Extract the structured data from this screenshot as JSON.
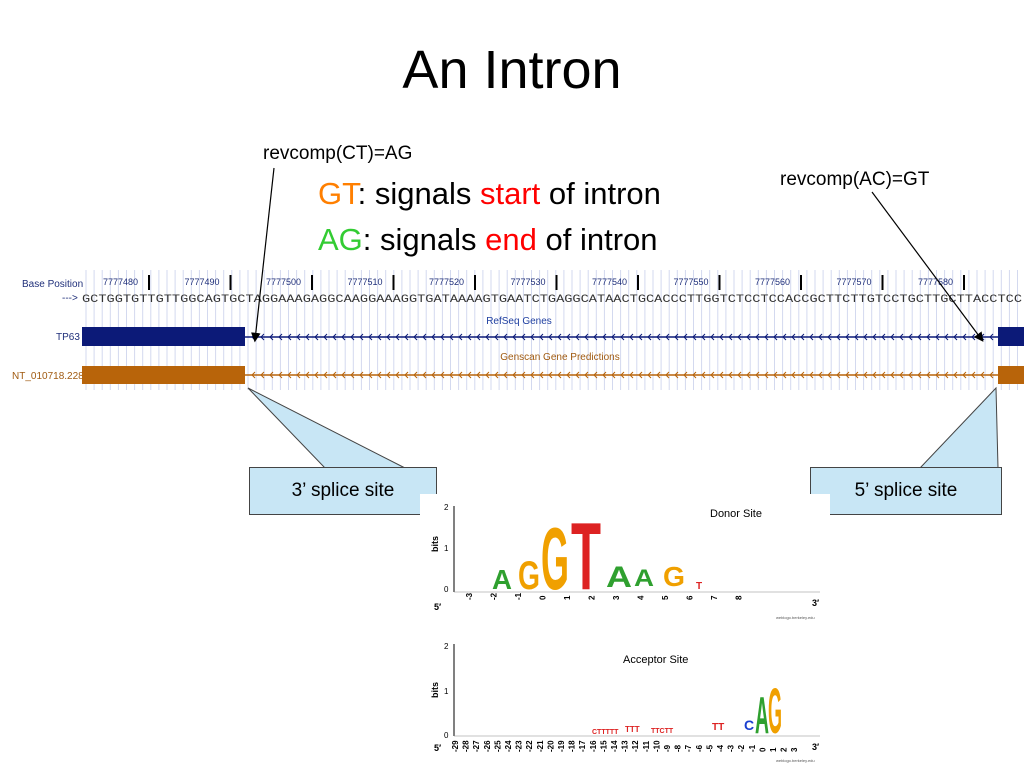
{
  "slide": {
    "title": "An Intron",
    "callout_left": "revcomp(CT)=AG",
    "callout_right": "revcomp(AC)=GT",
    "line1": {
      "part1": "GT",
      "part2": ": signals ",
      "part3": "start",
      "part4": " of intron"
    },
    "line2": {
      "part1": "AG",
      "part2": ": signals ",
      "part3": "end",
      "part4": " of intron"
    },
    "splice_left": "3’ splice site",
    "splice_right": "5’ splice site"
  },
  "browser": {
    "base_position_label": "Base Position",
    "arrow_label": "--->",
    "sequence": "GCTGGTGTTGTTGGCAGTGCTAGGAAAGAGGCAAGGAAAGGTGATAAAAGTGAATCTGAGGCATAACTGCACCCTTGGTCTCCTCCACCGCTTCTTGTCCTGCTTGCTTACCTCC",
    "positions": [
      "7777480",
      "7777490",
      "7777500",
      "7777510",
      "7777520",
      "7777530",
      "7777540",
      "7777550",
      "7777560",
      "7777570",
      "7777580"
    ],
    "track1_label": "TP63",
    "track1_title": "RefSeq Genes",
    "track2_label": "NT_010718.228",
    "track2_title": "Genscan Gene Predictions",
    "colors": {
      "refseq": "#0c1a78",
      "genscan": "#b8640a"
    }
  },
  "logos": {
    "donor": {
      "title": "Donor Site",
      "ylabel": "bits",
      "yticks": [
        "2",
        "1",
        "0"
      ],
      "xticks": [
        "-3",
        "-2",
        "-1",
        "0",
        "1",
        "2",
        "3",
        "4",
        "5",
        "6",
        "7",
        "8"
      ],
      "end5": "5′",
      "end3": "3′",
      "credit": "weblogo.berkeley.edu"
    },
    "acceptor": {
      "title": "Acceptor Site",
      "ylabel": "bits",
      "yticks": [
        "2",
        "1",
        "0"
      ],
      "xticks": [
        "-29",
        "-28",
        "-27",
        "-26",
        "-25",
        "-24",
        "-23",
        "-22",
        "-21",
        "-20",
        "-19",
        "-18",
        "-17",
        "-16",
        "-15",
        "-14",
        "-13",
        "-12",
        "-11",
        "-10",
        "-9",
        "-8",
        "-7",
        "-6",
        "-5",
        "-4",
        "-3",
        "-2",
        "-1",
        "0",
        "1",
        "2",
        "3"
      ],
      "end5": "5′",
      "end3": "3′",
      "credit": "weblogo.berkeley.edu"
    }
  }
}
